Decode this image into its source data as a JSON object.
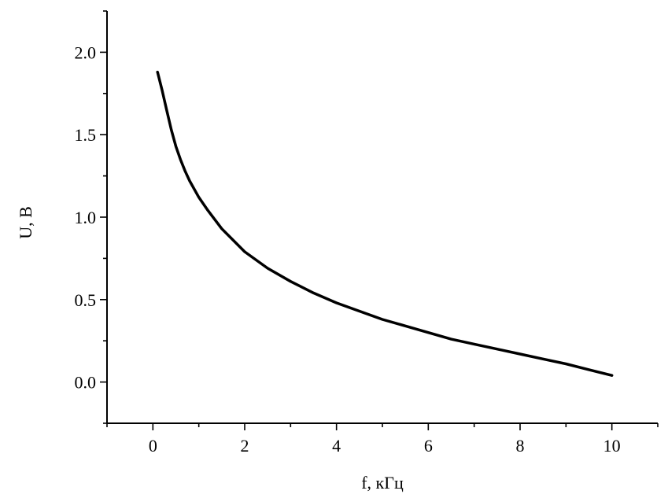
{
  "chart_data": {
    "type": "line",
    "xlabel": "f, кГц",
    "ylabel": "U, В",
    "xlim": [
      -1,
      11
    ],
    "ylim": [
      -0.25,
      2.25
    ],
    "x_ticks": [
      "0",
      "2",
      "4",
      "6",
      "8",
      "10"
    ],
    "y_ticks": [
      "0.0",
      "0.5",
      "1.0",
      "1.5",
      "2.0"
    ],
    "grid": false,
    "series": [
      {
        "color": "#000000",
        "x": [
          0.1,
          0.2,
          0.3,
          0.4,
          0.5,
          0.6,
          0.7,
          0.8,
          1.0,
          1.2,
          1.5,
          2.0,
          2.5,
          3.0,
          3.5,
          4.0,
          4.5,
          5.0,
          5.5,
          6.0,
          6.5,
          7.0,
          7.5,
          8.0,
          8.5,
          9.0,
          9.5,
          10.0
        ],
        "y": [
          1.88,
          1.77,
          1.65,
          1.53,
          1.43,
          1.35,
          1.28,
          1.22,
          1.12,
          1.04,
          0.93,
          0.79,
          0.69,
          0.61,
          0.54,
          0.48,
          0.43,
          0.38,
          0.34,
          0.3,
          0.26,
          0.23,
          0.2,
          0.17,
          0.14,
          0.11,
          0.075,
          0.04
        ]
      }
    ]
  }
}
